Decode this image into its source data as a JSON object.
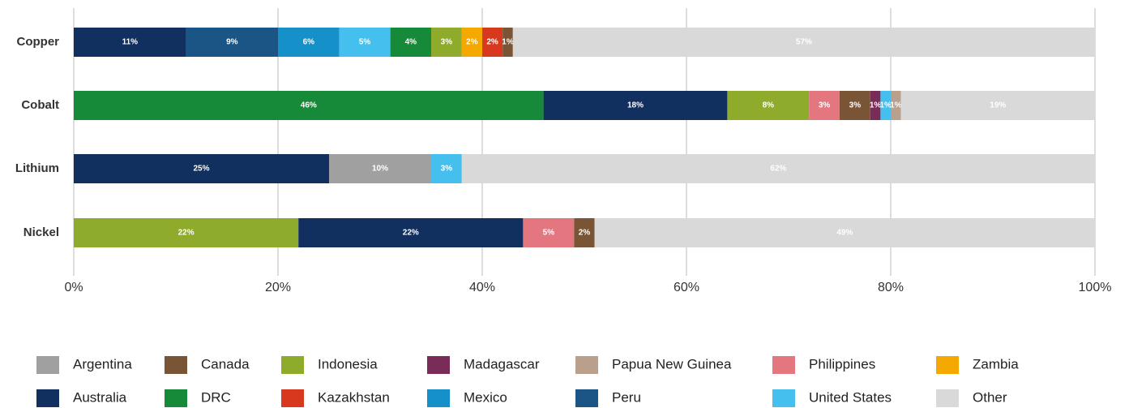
{
  "chart_data": {
    "type": "stacked-bar-horizontal",
    "categories": [
      "Copper",
      "Cobalt",
      "Lithium",
      "Nickel"
    ],
    "xlim": [
      0,
      100
    ],
    "xticks": [
      {
        "value": 0,
        "label": "0%"
      },
      {
        "value": 20,
        "label": "20%"
      },
      {
        "value": 40,
        "label": "40%"
      },
      {
        "value": 60,
        "label": "60%"
      },
      {
        "value": 80,
        "label": "80%"
      },
      {
        "value": 100,
        "label": "100%"
      }
    ],
    "grid": true,
    "series": [
      {
        "name": "Argentina",
        "color": "#a0a0a0"
      },
      {
        "name": "Australia",
        "color": "#12305f"
      },
      {
        "name": "Canada",
        "color": "#7a5535"
      },
      {
        "name": "DRC",
        "color": "#178a3a"
      },
      {
        "name": "Indonesia",
        "color": "#8fab2b"
      },
      {
        "name": "Kazakhstan",
        "color": "#d7381e"
      },
      {
        "name": "Madagascar",
        "color": "#7a2c58"
      },
      {
        "name": "Mexico",
        "color": "#1690c8"
      },
      {
        "name": "Papua New Guinea",
        "color": "#b8a08c"
      },
      {
        "name": "Peru",
        "color": "#1a5585"
      },
      {
        "name": "Philippines",
        "color": "#e47680"
      },
      {
        "name": "United States",
        "color": "#45c0ee"
      },
      {
        "name": "Zambia",
        "color": "#f5a800"
      },
      {
        "name": "Other",
        "color": "#d9d9d9"
      }
    ],
    "stacks": [
      [
        {
          "series": "Australia",
          "value": 11,
          "label": "11%"
        },
        {
          "series": "Peru",
          "value": 9,
          "label": "9%"
        },
        {
          "series": "Mexico",
          "value": 6,
          "label": "6%"
        },
        {
          "series": "United States",
          "value": 5,
          "label": "5%"
        },
        {
          "series": "DRC",
          "value": 4,
          "label": "4%"
        },
        {
          "series": "Indonesia",
          "value": 3,
          "label": "3%"
        },
        {
          "series": "Zambia",
          "value": 2,
          "label": "2%"
        },
        {
          "series": "Kazakhstan",
          "value": 2,
          "label": "2%"
        },
        {
          "series": "Canada",
          "value": 1,
          "label": "1%"
        },
        {
          "series": "Other",
          "value": 57,
          "label": "57%"
        }
      ],
      [
        {
          "series": "DRC",
          "value": 46,
          "label": "46%"
        },
        {
          "series": "Australia",
          "value": 18,
          "label": "18%"
        },
        {
          "series": "Indonesia",
          "value": 8,
          "label": "8%"
        },
        {
          "series": "Philippines",
          "value": 3,
          "label": "3%"
        },
        {
          "series": "Canada",
          "value": 3,
          "label": "3%"
        },
        {
          "series": "Madagascar",
          "value": 1,
          "label": "1%"
        },
        {
          "series": "United States",
          "value": 1,
          "label": "1%"
        },
        {
          "series": "Papua New Guinea",
          "value": 1,
          "label": "1%"
        },
        {
          "series": "Other",
          "value": 19,
          "label": "19%"
        }
      ],
      [
        {
          "series": "Australia",
          "value": 25,
          "label": "25%"
        },
        {
          "series": "Argentina",
          "value": 10,
          "label": "10%"
        },
        {
          "series": "United States",
          "value": 3,
          "label": "3%"
        },
        {
          "series": "Other",
          "value": 62,
          "label": "62%"
        }
      ],
      [
        {
          "series": "Indonesia",
          "value": 22,
          "label": "22%"
        },
        {
          "series": "Australia",
          "value": 22,
          "label": "22%"
        },
        {
          "series": "Philippines",
          "value": 5,
          "label": "5%"
        },
        {
          "series": "Canada",
          "value": 2,
          "label": "2%"
        },
        {
          "series": "Other",
          "value": 49,
          "label": "49%"
        }
      ]
    ]
  }
}
